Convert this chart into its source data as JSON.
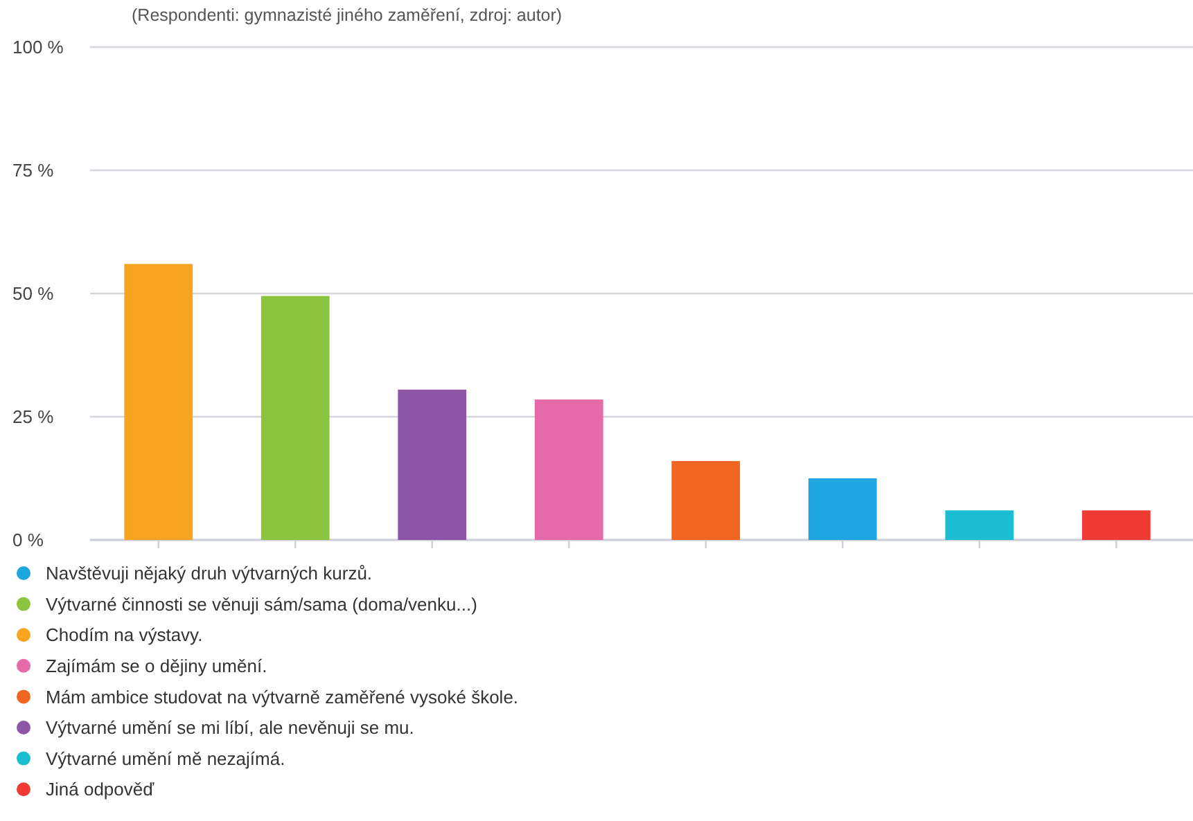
{
  "chart_data": {
    "type": "bar",
    "subtitle": "(Respondenti: gymnazisté jiného zaměření, zdroj: autor)",
    "categories": [
      null,
      null,
      null,
      null,
      null,
      null,
      null,
      null
    ],
    "stacked": true,
    "series": [
      {
        "name": "Navštěvuji nějaký druh výtvarných kurzů.",
        "color": "#1fa6e0",
        "values": [
          null,
          null,
          null,
          null,
          null,
          12.5,
          null,
          null
        ]
      },
      {
        "name": "Výtvarné činnosti se věnuji sám/sama (doma/venku...)",
        "color": "#8bc540",
        "values": [
          null,
          49.5,
          null,
          null,
          null,
          null,
          null,
          null
        ]
      },
      {
        "name": "Chodím na výstavy.",
        "color": "#f7a520",
        "values": [
          56,
          null,
          null,
          null,
          null,
          null,
          null,
          null
        ]
      },
      {
        "name": "Zajímám se o dějiny umění.",
        "color": "#e76aa8",
        "values": [
          null,
          null,
          null,
          28.5,
          null,
          null,
          null,
          null
        ]
      },
      {
        "name": "Mám ambice studovat na výtvarně zaměřené vysoké škole.",
        "color": "#f06522",
        "values": [
          null,
          null,
          null,
          null,
          16,
          null,
          null,
          null
        ]
      },
      {
        "name": "Výtvarné umění se mi líbí, ale nevěnuji se mu.",
        "color": "#8c55a5",
        "values": [
          null,
          null,
          30.5,
          null,
          null,
          null,
          null,
          null
        ]
      },
      {
        "name": "Výtvarné umění mě nezajímá.",
        "color": "#1bbdd0",
        "values": [
          null,
          null,
          null,
          null,
          null,
          null,
          6,
          null
        ]
      },
      {
        "name": "Jiná odpověď",
        "color": "#ee3c34",
        "values": [
          null,
          null,
          null,
          null,
          null,
          null,
          null,
          6
        ]
      }
    ],
    "ylim": [
      0,
      100
    ],
    "yticks": [
      {
        "value": 0,
        "label": "0 %"
      },
      {
        "value": 25,
        "label": "25 %"
      },
      {
        "value": 50,
        "label": "50 %"
      },
      {
        "value": 75,
        "label": "75 %"
      },
      {
        "value": 100,
        "label": "100 %"
      }
    ],
    "grid": "y",
    "legend": "bottom",
    "tick_labels": "y"
  }
}
